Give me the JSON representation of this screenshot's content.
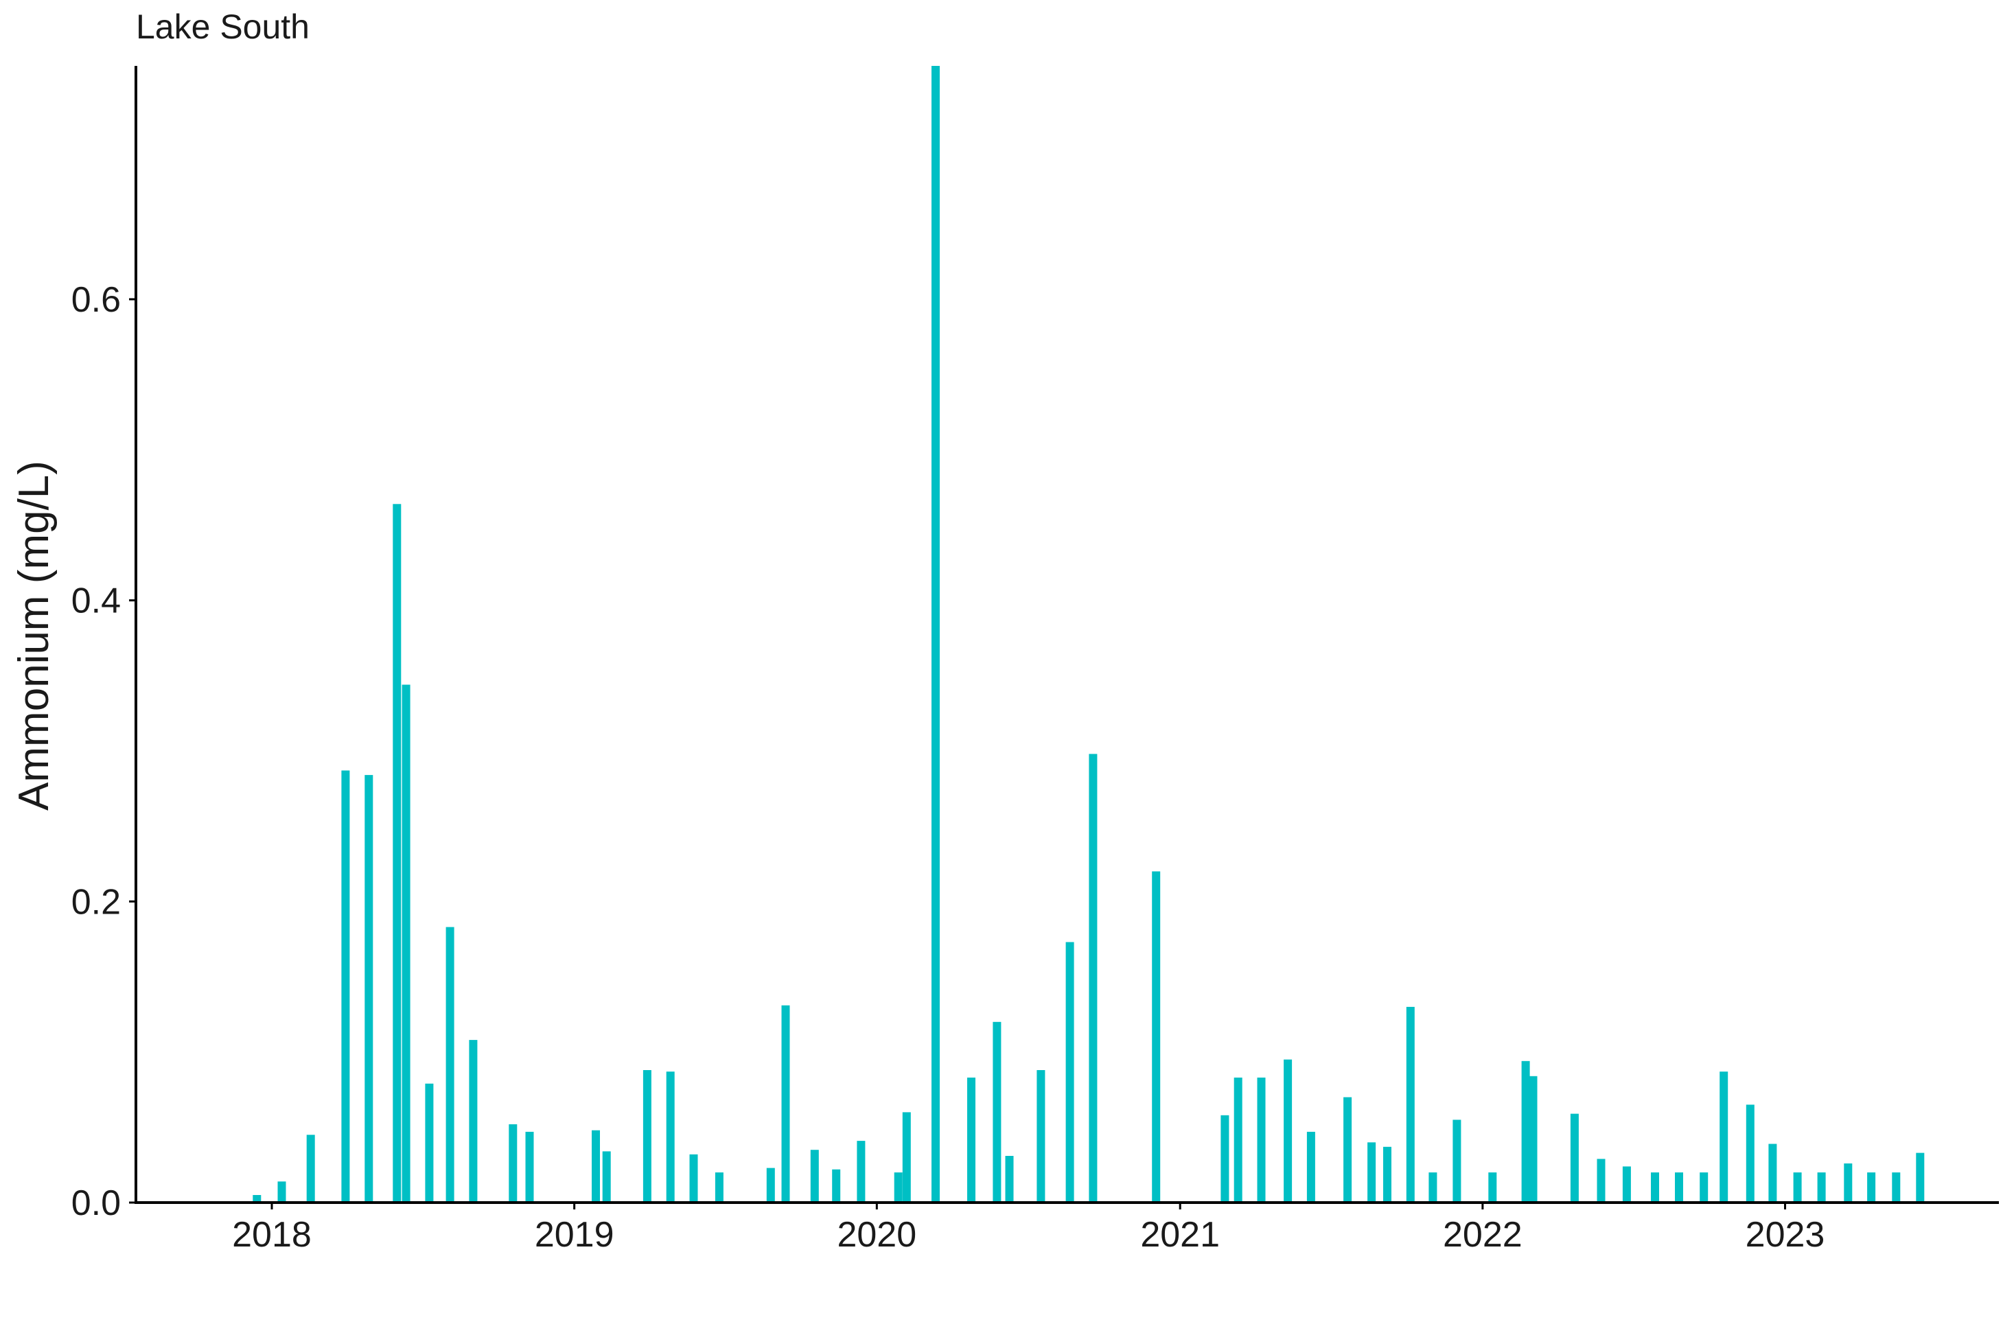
{
  "chart_data": {
    "type": "bar",
    "title": "Lake South",
    "xlabel": "",
    "ylabel": "Ammonium (mg/L)",
    "xlim": [
      "2017-07-21",
      "2023-09-16"
    ],
    "ylim": [
      0,
      0.755
    ],
    "yticks": [
      0.0,
      0.2,
      0.4,
      0.6
    ],
    "ytick_labels": [
      "0.0",
      "0.2",
      "0.4",
      "0.6"
    ],
    "xticks": [
      "2018-01-01",
      "2019-01-01",
      "2020-01-01",
      "2021-01-01",
      "2022-01-01",
      "2023-01-01"
    ],
    "xtick_labels": [
      "2018",
      "2019",
      "2020",
      "2021",
      "2022",
      "2023"
    ],
    "grid": false,
    "legend": "none",
    "bar_color": "#00BFC4",
    "series": [
      {
        "x": [
          "2017-12-14",
          "2018-01-13",
          "2018-02-17",
          "2018-03-31",
          "2018-04-28",
          "2018-06-01",
          "2018-06-12",
          "2018-07-10",
          "2018-08-04",
          "2018-09-01",
          "2018-10-19",
          "2018-11-08",
          "2019-01-27",
          "2019-02-09",
          "2019-03-30",
          "2019-04-27",
          "2019-05-25",
          "2019-06-25",
          "2019-08-26",
          "2019-09-13",
          "2019-10-18",
          "2019-11-13",
          "2019-12-13",
          "2020-01-27",
          "2020-02-06",
          "2020-03-12",
          "2020-04-24",
          "2020-05-25",
          "2020-06-09",
          "2020-07-17",
          "2020-08-21",
          "2020-09-18",
          "2020-12-03",
          "2021-02-24",
          "2021-03-12",
          "2021-04-09",
          "2021-05-11",
          "2021-06-08",
          "2021-07-22",
          "2021-08-20",
          "2021-09-08",
          "2021-10-06",
          "2021-11-02",
          "2021-12-01",
          "2022-01-13",
          "2022-02-22",
          "2022-03-03",
          "2022-04-22",
          "2022-05-24",
          "2022-06-24",
          "2022-07-28",
          "2022-08-26",
          "2022-09-25",
          "2022-10-19",
          "2022-11-20",
          "2022-12-17",
          "2023-01-16",
          "2023-02-14",
          "2023-03-18",
          "2023-04-15",
          "2023-05-15",
          "2023-06-13"
        ],
        "values": [
          0.005,
          0.014,
          0.045,
          0.287,
          0.284,
          0.464,
          0.344,
          0.079,
          0.183,
          0.108,
          0.052,
          0.047,
          0.048,
          0.034,
          0.088,
          0.087,
          0.032,
          0.02,
          0.023,
          0.131,
          0.035,
          0.022,
          0.041,
          0.02,
          0.06,
          0.755,
          0.083,
          0.12,
          0.031,
          0.088,
          0.173,
          0.298,
          0.22,
          0.058,
          0.083,
          0.083,
          0.095,
          0.047,
          0.07,
          0.04,
          0.037,
          0.13,
          0.02,
          0.055,
          0.02,
          0.094,
          0.084,
          0.059,
          0.029,
          0.024,
          0.02,
          0.02,
          0.02,
          0.087,
          0.065,
          0.039,
          0.02,
          0.02,
          0.026,
          0.02,
          0.02,
          0.033
        ]
      }
    ]
  }
}
